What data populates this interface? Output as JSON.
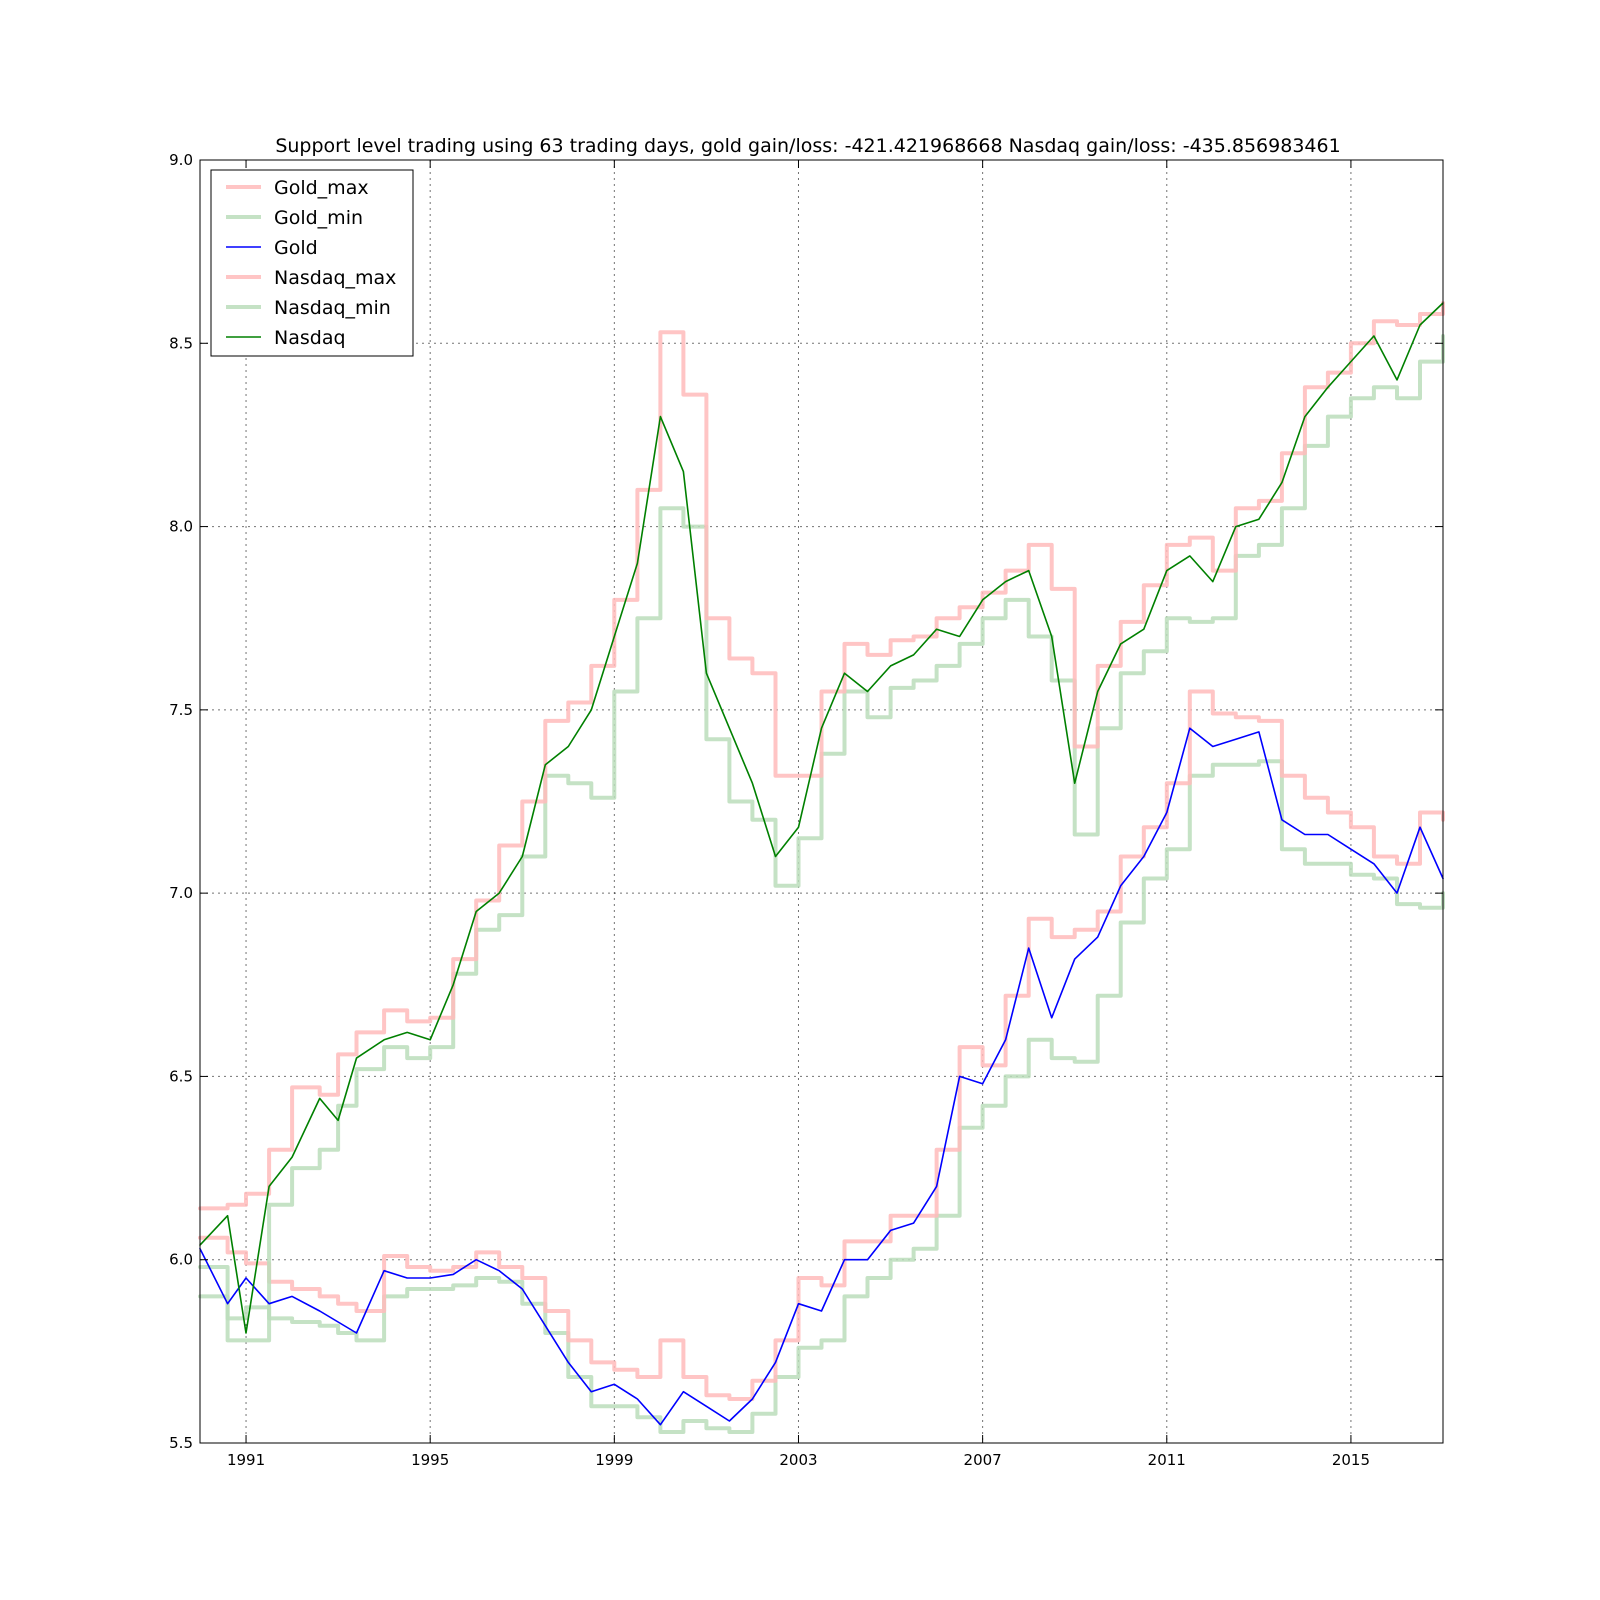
{
  "chart_data": {
    "type": "line",
    "title": "Support level trading using 63 trading days, gold gain/loss: -421.421968668 Nasdaq gain/loss: -435.856983461",
    "xlabel": "",
    "ylabel": "",
    "xlim": [
      1990.0,
      2017.0
    ],
    "ylim": [
      5.5,
      9.0
    ],
    "xticks": [
      1991,
      1995,
      1999,
      2003,
      2007,
      2011,
      2015
    ],
    "xtick_labels": [
      "1991",
      "1995",
      "1999",
      "2003",
      "2007",
      "2011",
      "2015"
    ],
    "yticks": [
      5.5,
      6.0,
      6.5,
      7.0,
      7.5,
      8.0,
      8.5,
      9.0
    ],
    "ytick_labels": [
      "5.5",
      "6.0",
      "6.5",
      "7.0",
      "7.5",
      "8.0",
      "8.5",
      "9.0"
    ],
    "grid": true,
    "legend_position": "top-left",
    "legend": [
      "Gold_max",
      "Gold_min",
      "Gold",
      "Nasdaq_max",
      "Nasdaq_min",
      "Nasdaq"
    ],
    "series": [
      {
        "name": "Gold_max",
        "color": "#ffbbbb",
        "style": "thick-translucent",
        "x": [
          1990.0,
          1990.6,
          1991.0,
          1991.5,
          1992.0,
          1992.6,
          1993.0,
          1993.4,
          1994.0,
          1994.5,
          1995.0,
          1995.5,
          1996.0,
          1996.5,
          1997.0,
          1997.5,
          1998.0,
          1998.5,
          1999.0,
          1999.5,
          2000.0,
          2000.5,
          2001.0,
          2001.5,
          2002.0,
          2002.5,
          2003.0,
          2003.5,
          2004.0,
          2004.5,
          2005.0,
          2005.5,
          2006.0,
          2006.5,
          2007.0,
          2007.5,
          2008.0,
          2008.5,
          2009.0,
          2009.5,
          2010.0,
          2010.5,
          2011.0,
          2011.5,
          2012.0,
          2012.5,
          2013.0,
          2013.5,
          2014.0,
          2014.5,
          2015.0,
          2015.5,
          2016.0,
          2016.5,
          2017.0
        ],
        "y": [
          6.06,
          6.02,
          5.99,
          5.94,
          5.92,
          5.9,
          5.88,
          5.86,
          6.01,
          5.98,
          5.97,
          5.98,
          6.02,
          5.98,
          5.95,
          5.86,
          5.78,
          5.72,
          5.7,
          5.68,
          5.78,
          5.68,
          5.63,
          5.62,
          5.67,
          5.78,
          5.95,
          5.93,
          6.05,
          6.05,
          6.12,
          6.12,
          6.3,
          6.58,
          6.53,
          6.72,
          6.93,
          6.88,
          6.9,
          6.95,
          7.1,
          7.18,
          7.3,
          7.55,
          7.49,
          7.48,
          7.47,
          7.32,
          7.26,
          7.22,
          7.18,
          7.1,
          7.08,
          7.22,
          7.2
        ]
      },
      {
        "name": "Gold_min",
        "color": "#bbddbb",
        "style": "thick-translucent",
        "x": [
          1990.0,
          1990.6,
          1991.0,
          1991.5,
          1992.0,
          1992.6,
          1993.0,
          1993.4,
          1994.0,
          1994.5,
          1995.0,
          1995.5,
          1996.0,
          1996.5,
          1997.0,
          1997.5,
          1998.0,
          1998.5,
          1999.0,
          1999.5,
          2000.0,
          2000.5,
          2001.0,
          2001.5,
          2002.0,
          2002.5,
          2003.0,
          2003.5,
          2004.0,
          2004.5,
          2005.0,
          2005.5,
          2006.0,
          2006.5,
          2007.0,
          2007.5,
          2008.0,
          2008.5,
          2009.0,
          2009.5,
          2010.0,
          2010.5,
          2011.0,
          2011.5,
          2012.0,
          2012.5,
          2013.0,
          2013.5,
          2014.0,
          2014.5,
          2015.0,
          2015.5,
          2016.0,
          2016.5,
          2017.0
        ],
        "y": [
          5.9,
          5.84,
          5.87,
          5.84,
          5.83,
          5.82,
          5.8,
          5.78,
          5.9,
          5.92,
          5.92,
          5.93,
          5.95,
          5.94,
          5.88,
          5.8,
          5.68,
          5.6,
          5.6,
          5.57,
          5.53,
          5.56,
          5.54,
          5.53,
          5.58,
          5.68,
          5.76,
          5.78,
          5.9,
          5.95,
          6.0,
          6.03,
          6.12,
          6.36,
          6.42,
          6.5,
          6.6,
          6.55,
          6.54,
          6.72,
          6.92,
          7.04,
          7.12,
          7.32,
          7.35,
          7.35,
          7.36,
          7.12,
          7.08,
          7.08,
          7.05,
          7.04,
          6.97,
          6.96,
          7.0
        ]
      },
      {
        "name": "Gold",
        "color": "#0000ff",
        "style": "thin",
        "x": [
          1990.0,
          1990.6,
          1991.0,
          1991.5,
          1992.0,
          1992.6,
          1993.0,
          1993.4,
          1994.0,
          1994.5,
          1995.0,
          1995.5,
          1996.0,
          1996.5,
          1997.0,
          1997.5,
          1998.0,
          1998.5,
          1999.0,
          1999.5,
          2000.0,
          2000.5,
          2001.0,
          2001.5,
          2002.0,
          2002.5,
          2003.0,
          2003.5,
          2004.0,
          2004.5,
          2005.0,
          2005.5,
          2006.0,
          2006.5,
          2007.0,
          2007.5,
          2008.0,
          2008.5,
          2009.0,
          2009.5,
          2010.0,
          2010.5,
          2011.0,
          2011.5,
          2012.0,
          2012.5,
          2013.0,
          2013.5,
          2014.0,
          2014.5,
          2015.0,
          2015.5,
          2016.0,
          2016.5,
          2017.0
        ],
        "y": [
          6.03,
          5.88,
          5.95,
          5.88,
          5.9,
          5.86,
          5.83,
          5.8,
          5.97,
          5.95,
          5.95,
          5.96,
          6.0,
          5.97,
          5.92,
          5.82,
          5.72,
          5.64,
          5.66,
          5.62,
          5.55,
          5.64,
          5.6,
          5.56,
          5.62,
          5.72,
          5.88,
          5.86,
          6.0,
          6.0,
          6.08,
          6.1,
          6.2,
          6.5,
          6.48,
          6.6,
          6.85,
          6.66,
          6.82,
          6.88,
          7.02,
          7.1,
          7.22,
          7.45,
          7.4,
          7.42,
          7.44,
          7.2,
          7.16,
          7.16,
          7.12,
          7.08,
          7.0,
          7.18,
          7.04
        ]
      },
      {
        "name": "Nasdaq_max",
        "color": "#ffbbbb",
        "style": "thick-translucent",
        "x": [
          1990.0,
          1990.6,
          1991.0,
          1991.5,
          1992.0,
          1992.6,
          1993.0,
          1993.4,
          1994.0,
          1994.5,
          1995.0,
          1995.5,
          1996.0,
          1996.5,
          1997.0,
          1997.5,
          1998.0,
          1998.5,
          1999.0,
          1999.5,
          2000.0,
          2000.5,
          2001.0,
          2001.5,
          2002.0,
          2002.5,
          2003.0,
          2003.5,
          2004.0,
          2004.5,
          2005.0,
          2005.5,
          2006.0,
          2006.5,
          2007.0,
          2007.5,
          2008.0,
          2008.5,
          2009.0,
          2009.5,
          2010.0,
          2010.5,
          2011.0,
          2011.5,
          2012.0,
          2012.5,
          2013.0,
          2013.5,
          2014.0,
          2014.5,
          2015.0,
          2015.5,
          2016.0,
          2016.5,
          2017.0
        ],
        "y": [
          6.14,
          6.15,
          6.18,
          6.3,
          6.47,
          6.45,
          6.56,
          6.62,
          6.68,
          6.65,
          6.66,
          6.82,
          6.98,
          7.13,
          7.25,
          7.47,
          7.52,
          7.62,
          7.8,
          8.1,
          8.53,
          8.36,
          7.75,
          7.64,
          7.6,
          7.32,
          7.32,
          7.55,
          7.68,
          7.65,
          7.69,
          7.7,
          7.75,
          7.78,
          7.82,
          7.88,
          7.95,
          7.83,
          7.4,
          7.62,
          7.74,
          7.84,
          7.95,
          7.97,
          7.88,
          8.05,
          8.07,
          8.2,
          8.38,
          8.42,
          8.5,
          8.56,
          8.55,
          8.58,
          8.61
        ]
      },
      {
        "name": "Nasdaq_min",
        "color": "#bbddbb",
        "style": "thick-translucent",
        "x": [
          1990.0,
          1990.6,
          1991.0,
          1991.5,
          1992.0,
          1992.6,
          1993.0,
          1993.4,
          1994.0,
          1994.5,
          1995.0,
          1995.5,
          1996.0,
          1996.5,
          1997.0,
          1997.5,
          1998.0,
          1998.5,
          1999.0,
          1999.5,
          2000.0,
          2000.5,
          2001.0,
          2001.5,
          2002.0,
          2002.5,
          2003.0,
          2003.5,
          2004.0,
          2004.5,
          2005.0,
          2005.5,
          2006.0,
          2006.5,
          2007.0,
          2007.5,
          2008.0,
          2008.5,
          2009.0,
          2009.5,
          2010.0,
          2010.5,
          2011.0,
          2011.5,
          2012.0,
          2012.5,
          2013.0,
          2013.5,
          2014.0,
          2014.5,
          2015.0,
          2015.5,
          2016.0,
          2016.5,
          2017.0
        ],
        "y": [
          5.98,
          5.78,
          5.78,
          6.15,
          6.25,
          6.3,
          6.42,
          6.52,
          6.58,
          6.55,
          6.58,
          6.78,
          6.9,
          6.94,
          7.1,
          7.32,
          7.3,
          7.26,
          7.55,
          7.75,
          8.05,
          8.0,
          7.42,
          7.25,
          7.2,
          7.02,
          7.15,
          7.38,
          7.55,
          7.48,
          7.56,
          7.58,
          7.62,
          7.68,
          7.75,
          7.8,
          7.7,
          7.58,
          7.16,
          7.45,
          7.6,
          7.66,
          7.75,
          7.74,
          7.75,
          7.92,
          7.95,
          8.05,
          8.22,
          8.3,
          8.35,
          8.38,
          8.35,
          8.45,
          8.52
        ]
      },
      {
        "name": "Nasdaq",
        "color": "#008000",
        "style": "thin",
        "x": [
          1990.0,
          1990.6,
          1991.0,
          1991.5,
          1992.0,
          1992.6,
          1993.0,
          1993.4,
          1994.0,
          1994.5,
          1995.0,
          1995.5,
          1996.0,
          1996.5,
          1997.0,
          1997.5,
          1998.0,
          1998.5,
          1999.0,
          1999.5,
          2000.0,
          2000.5,
          2001.0,
          2001.5,
          2002.0,
          2002.5,
          2003.0,
          2003.5,
          2004.0,
          2004.5,
          2005.0,
          2005.5,
          2006.0,
          2006.5,
          2007.0,
          2007.5,
          2008.0,
          2008.5,
          2009.0,
          2009.5,
          2010.0,
          2010.5,
          2011.0,
          2011.5,
          2012.0,
          2012.5,
          2013.0,
          2013.5,
          2014.0,
          2014.5,
          2015.0,
          2015.5,
          2016.0,
          2016.5,
          2017.0
        ],
        "y": [
          6.04,
          6.12,
          5.8,
          6.2,
          6.28,
          6.44,
          6.38,
          6.55,
          6.6,
          6.62,
          6.6,
          6.75,
          6.95,
          7.0,
          7.1,
          7.35,
          7.4,
          7.5,
          7.7,
          7.9,
          8.3,
          8.15,
          7.6,
          7.45,
          7.3,
          7.1,
          7.18,
          7.45,
          7.6,
          7.55,
          7.62,
          7.65,
          7.72,
          7.7,
          7.8,
          7.85,
          7.88,
          7.7,
          7.3,
          7.55,
          7.68,
          7.72,
          7.88,
          7.92,
          7.85,
          8.0,
          8.02,
          8.12,
          8.3,
          8.38,
          8.45,
          8.52,
          8.4,
          8.55,
          8.61
        ]
      }
    ]
  }
}
